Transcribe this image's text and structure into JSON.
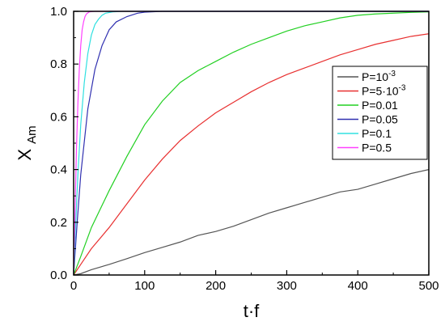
{
  "chart_data": {
    "type": "line",
    "xlabel": "t·f",
    "ylabel": {
      "main": "X",
      "sub": "Am"
    },
    "xlim": [
      0,
      500
    ],
    "ylim": [
      0,
      1.0
    ],
    "x_ticks": [
      0,
      100,
      200,
      300,
      400,
      500
    ],
    "y_ticks": [
      0.0,
      0.2,
      0.4,
      0.6,
      0.8,
      1.0
    ],
    "x_tick_labels": [
      "0",
      "100",
      "200",
      "300",
      "400",
      "500"
    ],
    "y_tick_labels": [
      "0.0",
      "0.2",
      "0.4",
      "0.6",
      "0.8",
      "1.0"
    ],
    "grid": false,
    "legend_position": "right",
    "series": [
      {
        "name": "P=10",
        "name_sup": "-3",
        "color": "#555555",
        "x": [
          0,
          10,
          25,
          50,
          75,
          100,
          125,
          150,
          175,
          200,
          225,
          250,
          275,
          300,
          325,
          350,
          375,
          400,
          425,
          450,
          475,
          500
        ],
        "y": [
          0,
          0.005,
          0.02,
          0.04,
          0.062,
          0.085,
          0.105,
          0.125,
          0.15,
          0.165,
          0.185,
          0.21,
          0.235,
          0.255,
          0.275,
          0.295,
          0.315,
          0.325,
          0.345,
          0.365,
          0.385,
          0.4
        ]
      },
      {
        "name": "P=5·10",
        "name_sup": "-3",
        "color": "#e83030",
        "x": [
          0,
          10,
          25,
          50,
          75,
          100,
          125,
          150,
          175,
          200,
          225,
          250,
          275,
          300,
          325,
          350,
          375,
          400,
          425,
          450,
          475,
          500
        ],
        "y": [
          0,
          0.04,
          0.1,
          0.18,
          0.27,
          0.36,
          0.44,
          0.51,
          0.565,
          0.615,
          0.655,
          0.695,
          0.73,
          0.76,
          0.785,
          0.81,
          0.835,
          0.855,
          0.875,
          0.89,
          0.905,
          0.915
        ]
      },
      {
        "name": "P=0.01",
        "name_sup": "",
        "color": "#22d022",
        "x": [
          0,
          10,
          25,
          50,
          75,
          100,
          125,
          150,
          175,
          200,
          225,
          250,
          275,
          300,
          325,
          350,
          375,
          400,
          425,
          450,
          475,
          500
        ],
        "y": [
          0,
          0.07,
          0.18,
          0.32,
          0.45,
          0.57,
          0.66,
          0.73,
          0.775,
          0.81,
          0.845,
          0.875,
          0.9,
          0.925,
          0.945,
          0.96,
          0.975,
          0.985,
          0.99,
          0.993,
          0.996,
          0.998
        ]
      },
      {
        "name": "P=0.05",
        "name_sup": "",
        "color": "#3030b0",
        "x": [
          0,
          5,
          10,
          20,
          30,
          40,
          50,
          60,
          75,
          90,
          100,
          125,
          150,
          200,
          300,
          400,
          500
        ],
        "y": [
          0,
          0.2,
          0.38,
          0.63,
          0.78,
          0.87,
          0.93,
          0.96,
          0.98,
          0.993,
          0.997,
          1.0,
          1.0,
          1.0,
          1.0,
          1.0,
          1.0
        ]
      },
      {
        "name": "P=0.1",
        "name_sup": "",
        "color": "#30e0e0",
        "x": [
          0,
          3,
          6,
          10,
          15,
          20,
          25,
          30,
          35,
          40,
          45,
          55,
          70,
          100,
          200,
          300,
          400,
          500
        ],
        "y": [
          0,
          0.2,
          0.38,
          0.57,
          0.73,
          0.84,
          0.91,
          0.95,
          0.97,
          0.985,
          0.993,
          0.998,
          1.0,
          1.0,
          1.0,
          1.0,
          1.0,
          1.0
        ]
      },
      {
        "name": "P=0.5",
        "name_sup": "",
        "color": "#ff40ff",
        "x": [
          0,
          2,
          4,
          6,
          8,
          10,
          12,
          14,
          16,
          18,
          22,
          30,
          50,
          100,
          200,
          300,
          400,
          500
        ],
        "y": [
          0,
          0.25,
          0.48,
          0.65,
          0.78,
          0.87,
          0.93,
          0.96,
          0.98,
          0.99,
          0.998,
          1.0,
          1.0,
          1.0,
          1.0,
          1.0,
          1.0,
          1.0
        ]
      }
    ]
  }
}
